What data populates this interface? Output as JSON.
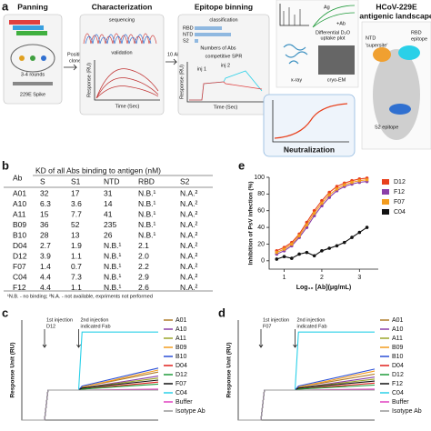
{
  "panel_labels": [
    "a",
    "b",
    "c",
    "d",
    "e"
  ],
  "panel_a": {
    "panning": "Panning",
    "rounds": "3-4 rounds",
    "spike": "229E Spike",
    "positive": [
      "Positive",
      "clones"
    ],
    "characterization": "Characterization",
    "sequencing": "sequencing",
    "validation": "validation",
    "response": "Response (RU)",
    "time": "Time (Sec)",
    "abs": "10 Abs",
    "binning": "Epitope binning",
    "classification": "classification",
    "class_labels": [
      "RBD",
      "NTD",
      "S2"
    ],
    "numbers": "Numbers of Abs",
    "spr": "competitive SPR",
    "inj1": "inj 1",
    "inj2": "inj 2",
    "ag": "Ag",
    "plus_ab": "+Ab",
    "uptake": [
      "Differential D₂O",
      "uptake plot"
    ],
    "xray": "x-ray",
    "cryo": "cryo-EM",
    "neutralization": "Neutralization",
    "landscape": [
      "HCoV-229E",
      "antigenic landscape"
    ],
    "ntd": "NTD",
    "supersite": "'supersite'",
    "rbd": [
      "RBD",
      "epitope"
    ],
    "s2": "S2 epitope"
  },
  "table": {
    "header_ab": "Ab",
    "header_kd": "KD of all Abs binding to antigen (nM)",
    "columns": [
      "S",
      "S1",
      "NTD",
      "RBD",
      "S2"
    ],
    "rows": [
      [
        "A01",
        "32",
        "17",
        "31",
        "N.B.¹",
        "N.A.²"
      ],
      [
        "A10",
        "6.3",
        "3.6",
        "14",
        "N.B.¹",
        "N.A.²"
      ],
      [
        "A11",
        "15",
        "7.7",
        "41",
        "N.B.¹",
        "N.A.²"
      ],
      [
        "B09",
        "36",
        "52",
        "235",
        "N.B.¹",
        "N.A.²"
      ],
      [
        "B10",
        "28",
        "13",
        "26",
        "N.B.¹",
        "N.A.²"
      ],
      [
        "D04",
        "2.7",
        "1.9",
        "N.B.¹",
        "2.1",
        "N.A.²"
      ],
      [
        "D12",
        "3.9",
        "1.1",
        "N.B.¹",
        "2.0",
        "N.A.²"
      ],
      [
        "F07",
        "1.4",
        "0.7",
        "N.B.¹",
        "2.2",
        "N.A.²"
      ],
      [
        "C04",
        "4.4",
        "7.3",
        "N.B.¹",
        "2.9",
        "N.A.²"
      ],
      [
        "F12",
        "4.4",
        "1.1",
        "N.B.¹",
        "2.6",
        "N.A.²"
      ]
    ],
    "footnote": "¹N.B. - no binding; ²N.A. - not available, expriments not performed"
  },
  "chart_data": [
    {
      "type": "line",
      "ylabel": "Inhibition of PsV infection (%)",
      "xlabel": "Log₁₀ [Ab](μg/mL)",
      "x": [
        0.8,
        1.0,
        1.2,
        1.4,
        1.6,
        1.8,
        2.0,
        2.2,
        2.4,
        2.6,
        2.8,
        3.0,
        3.2
      ],
      "xlim": [
        0.6,
        3.5
      ],
      "xticks": [
        1,
        2,
        3
      ],
      "ylim": [
        -10,
        100
      ],
      "yticks": [
        0,
        20,
        40,
        60,
        80,
        100
      ],
      "series": [
        {
          "name": "D12",
          "color": "#e8401c",
          "values": [
            12,
            16,
            22,
            32,
            46,
            60,
            72,
            82,
            89,
            93,
            96,
            98,
            99
          ]
        },
        {
          "name": "F12",
          "color": "#8b3fa8",
          "values": [
            8,
            12,
            18,
            28,
            40,
            54,
            66,
            76,
            84,
            89,
            92,
            94,
            95
          ]
        },
        {
          "name": "F07",
          "color": "#f39c1f",
          "values": [
            10,
            14,
            20,
            30,
            43,
            57,
            69,
            79,
            86,
            91,
            94,
            96,
            97
          ]
        },
        {
          "name": "C04",
          "color": "#111111",
          "values": [
            2,
            5,
            3,
            8,
            10,
            6,
            12,
            15,
            18,
            22,
            28,
            34,
            40
          ]
        }
      ]
    },
    {
      "type": "line",
      "ylabel": "Response Unit (RU)",
      "x": [
        0,
        2,
        2.3,
        5,
        5.3,
        12
      ],
      "xlim": [
        0,
        12
      ],
      "ylim": [
        0,
        100
      ],
      "annotations": [
        {
          "lines": [
            "1st injection",
            "D12"
          ],
          "x": 2
        },
        {
          "lines": [
            "2nd injection",
            "indicated Fab"
          ],
          "x": 5
        }
      ],
      "series": [
        {
          "name": "A01",
          "color": "#b07d2a",
          "values": [
            0,
            0,
            30,
            30,
            33,
            48
          ]
        },
        {
          "name": "A10",
          "color": "#8b3fa8",
          "values": [
            0,
            0,
            30,
            30,
            32,
            44
          ]
        },
        {
          "name": "A11",
          "color": "#9aa62a",
          "values": [
            0,
            0,
            30,
            30,
            32,
            42
          ]
        },
        {
          "name": "B09",
          "color": "#f39c1f",
          "values": [
            0,
            0,
            30,
            30,
            33,
            50
          ]
        },
        {
          "name": "B10",
          "color": "#2a4fd6",
          "values": [
            0,
            0,
            30,
            30,
            34,
            52
          ]
        },
        {
          "name": "D04",
          "color": "#e0201c",
          "values": [
            0,
            0,
            30,
            30,
            31,
            38
          ]
        },
        {
          "name": "D12",
          "color": "#1f9a3a",
          "values": [
            0,
            0,
            30,
            30,
            31,
            36
          ]
        },
        {
          "name": "F07",
          "color": "#111111",
          "values": [
            0,
            0,
            30,
            30,
            32,
            40
          ]
        },
        {
          "name": "C04",
          "color": "#2ad0e8",
          "values": [
            0,
            0,
            30,
            30,
            88,
            88
          ]
        },
        {
          "name": "Buffer",
          "color": "#e040c0",
          "values": [
            0,
            0,
            30,
            30,
            30,
            31
          ]
        },
        {
          "name": "Isotype Ab",
          "color": "#999999",
          "values": [
            0,
            0,
            30,
            30,
            30,
            30
          ]
        }
      ]
    },
    {
      "type": "line",
      "ylabel": "Response Unit (RU)",
      "x": [
        0,
        2,
        2.3,
        5,
        5.3,
        12
      ],
      "xlim": [
        0,
        12
      ],
      "ylim": [
        0,
        100
      ],
      "annotations": [
        {
          "lines": [
            "1st injection",
            "F07"
          ],
          "x": 2
        },
        {
          "lines": [
            "2nd injection",
            "indicated Fab"
          ],
          "x": 5
        }
      ],
      "series": [
        {
          "name": "A01",
          "color": "#b07d2a",
          "values": [
            0,
            0,
            30,
            30,
            33,
            46
          ]
        },
        {
          "name": "A10",
          "color": "#8b3fa8",
          "values": [
            0,
            0,
            30,
            30,
            32,
            43
          ]
        },
        {
          "name": "A11",
          "color": "#9aa62a",
          "values": [
            0,
            0,
            30,
            30,
            32,
            41
          ]
        },
        {
          "name": "B09",
          "color": "#f39c1f",
          "values": [
            0,
            0,
            30,
            30,
            33,
            49
          ]
        },
        {
          "name": "B10",
          "color": "#2a4fd6",
          "values": [
            0,
            0,
            30,
            30,
            34,
            51
          ]
        },
        {
          "name": "D04",
          "color": "#e0201c",
          "values": [
            0,
            0,
            30,
            30,
            31,
            37
          ]
        },
        {
          "name": "D12",
          "color": "#1f9a3a",
          "values": [
            0,
            0,
            30,
            30,
            31,
            35
          ]
        },
        {
          "name": "F12",
          "color": "#111111",
          "values": [
            0,
            0,
            30,
            30,
            32,
            39
          ]
        },
        {
          "name": "C04",
          "color": "#2ad0e8",
          "values": [
            0,
            0,
            30,
            30,
            88,
            88
          ]
        },
        {
          "name": "Buffer",
          "color": "#e040c0",
          "values": [
            0,
            0,
            30,
            30,
            30,
            31
          ]
        },
        {
          "name": "Isotype Ab",
          "color": "#999999",
          "values": [
            0,
            0,
            30,
            30,
            30,
            30
          ]
        }
      ]
    }
  ]
}
